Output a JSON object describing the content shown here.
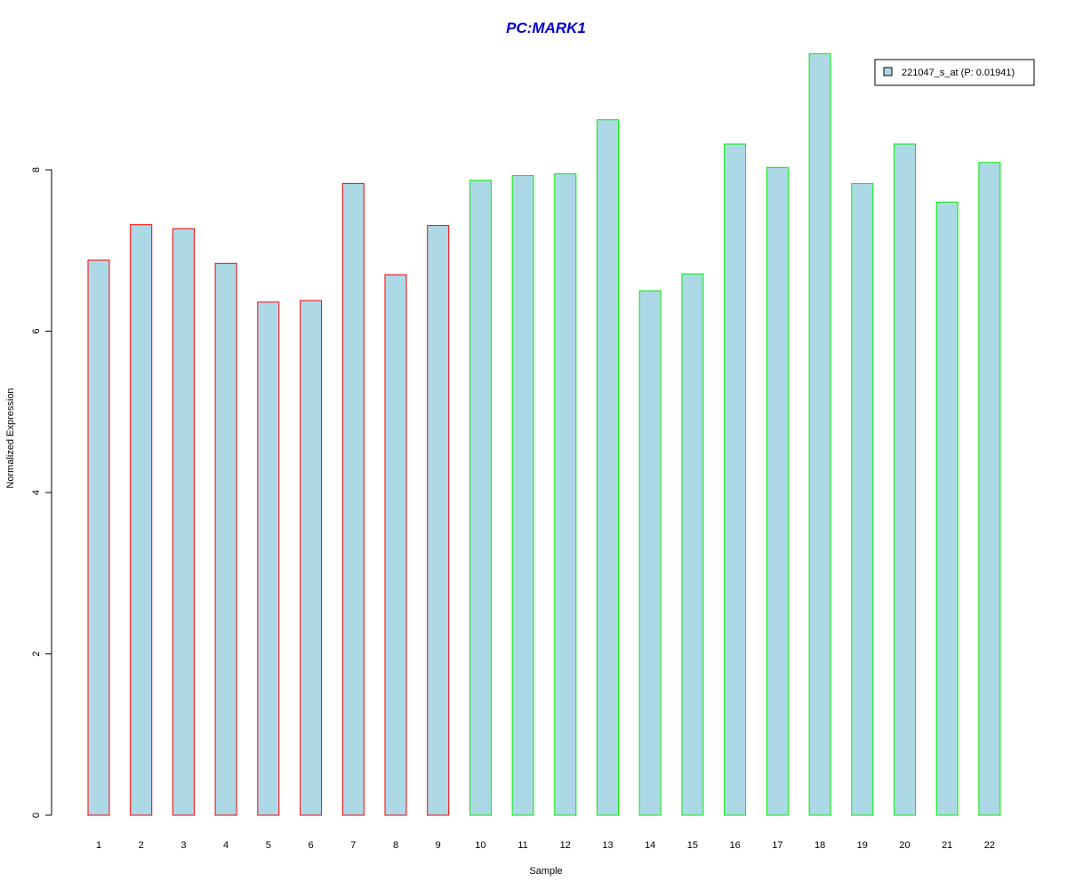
{
  "chart_data": {
    "type": "bar",
    "title": "PC:MARK1",
    "xlabel": "Sample",
    "ylabel": "Normalized Expression",
    "categories": [
      "1",
      "2",
      "3",
      "4",
      "5",
      "6",
      "7",
      "8",
      "9",
      "10",
      "11",
      "12",
      "13",
      "14",
      "15",
      "16",
      "17",
      "18",
      "19",
      "20",
      "21",
      "22"
    ],
    "series": [
      {
        "name": "221047_s_at (P: 0.01941)",
        "values": [
          6.88,
          7.32,
          7.27,
          6.84,
          6.36,
          6.38,
          7.83,
          6.7,
          7.31,
          7.87,
          7.93,
          7.95,
          8.62,
          6.5,
          6.71,
          8.32,
          8.03,
          9.44,
          7.83,
          8.32,
          7.6,
          8.09
        ]
      }
    ],
    "group_colors": [
      "#ff0000",
      "#ff0000",
      "#ff0000",
      "#ff0000",
      "#ff0000",
      "#ff0000",
      "#ff0000",
      "#ff0000",
      "#ff0000",
      "#00ee00",
      "#00ee00",
      "#00ee00",
      "#00ee00",
      "#00ee00",
      "#00ee00",
      "#00ee00",
      "#00ee00",
      "#00ee00",
      "#00ee00",
      "#00ee00",
      "#00ee00",
      "#00ee00"
    ],
    "fill_color": "#add8e6",
    "title_color": "#0000cd",
    "yticks": [
      "0",
      "2",
      "4",
      "6",
      "8"
    ],
    "ylim": [
      0,
      9.5
    ],
    "grid": false,
    "legend_position": "top-right"
  }
}
